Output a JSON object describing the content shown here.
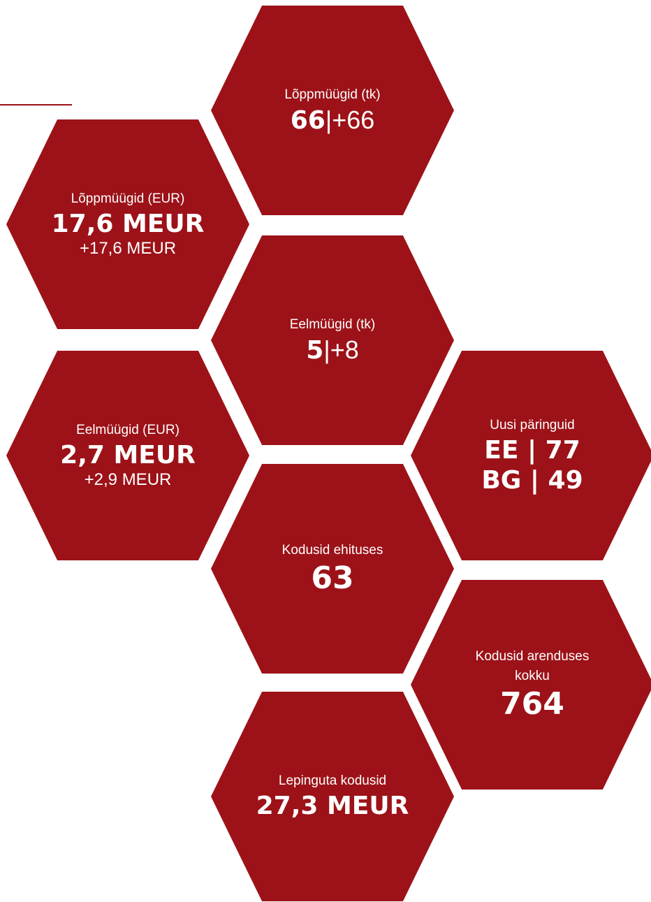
{
  "hexes": [
    {
      "label": [
        "Lõppmüügid (tk)"
      ],
      "lines": [
        [
          {
            "text": "66",
            "style": "big-bold"
          },
          {
            "text": "|",
            "style": "big-light"
          },
          {
            "text": "+66",
            "style": "big-light"
          }
        ]
      ]
    },
    {
      "label": [
        "Lõppmüügid (EUR)"
      ],
      "lines": [
        [
          {
            "text": "17,6 MEUR",
            "style": "big-bold"
          }
        ],
        [
          {
            "text": "+17,6 MEUR",
            "style": "small"
          }
        ]
      ]
    },
    {
      "label": [
        "Eelmüügid (tk)"
      ],
      "lines": [
        [
          {
            "text": "5",
            "style": "big-bold"
          },
          {
            "text": "|",
            "style": "big-light"
          },
          {
            "text": "+8",
            "style": "big-light"
          }
        ]
      ]
    },
    {
      "label": [
        "Eelmüügid (EUR)"
      ],
      "lines": [
        [
          {
            "text": "2,7 MEUR",
            "style": "big-bold"
          }
        ],
        [
          {
            "text": "+2,9 MEUR",
            "style": "small"
          }
        ]
      ]
    },
    {
      "label": [
        "Uusi päringuid"
      ],
      "lines": [
        [
          {
            "text": "EE | 77",
            "style": "big-bold"
          }
        ],
        [
          {
            "text": "BG | 49",
            "style": "big-bold"
          }
        ]
      ]
    },
    {
      "label": [
        "Kodusid ehituses"
      ],
      "lines": [
        [
          {
            "text": "63",
            "style": "huge-bold"
          }
        ]
      ]
    },
    {
      "label": [
        "Kodusid arenduses",
        "kokku"
      ],
      "lines": [
        [
          {
            "text": "764",
            "style": "huge-bold"
          }
        ]
      ]
    },
    {
      "label": [
        "Lepinguta kodusid"
      ],
      "lines": [
        [
          {
            "text": "27,3 MEUR",
            "style": "big-bold"
          }
        ]
      ]
    }
  ]
}
